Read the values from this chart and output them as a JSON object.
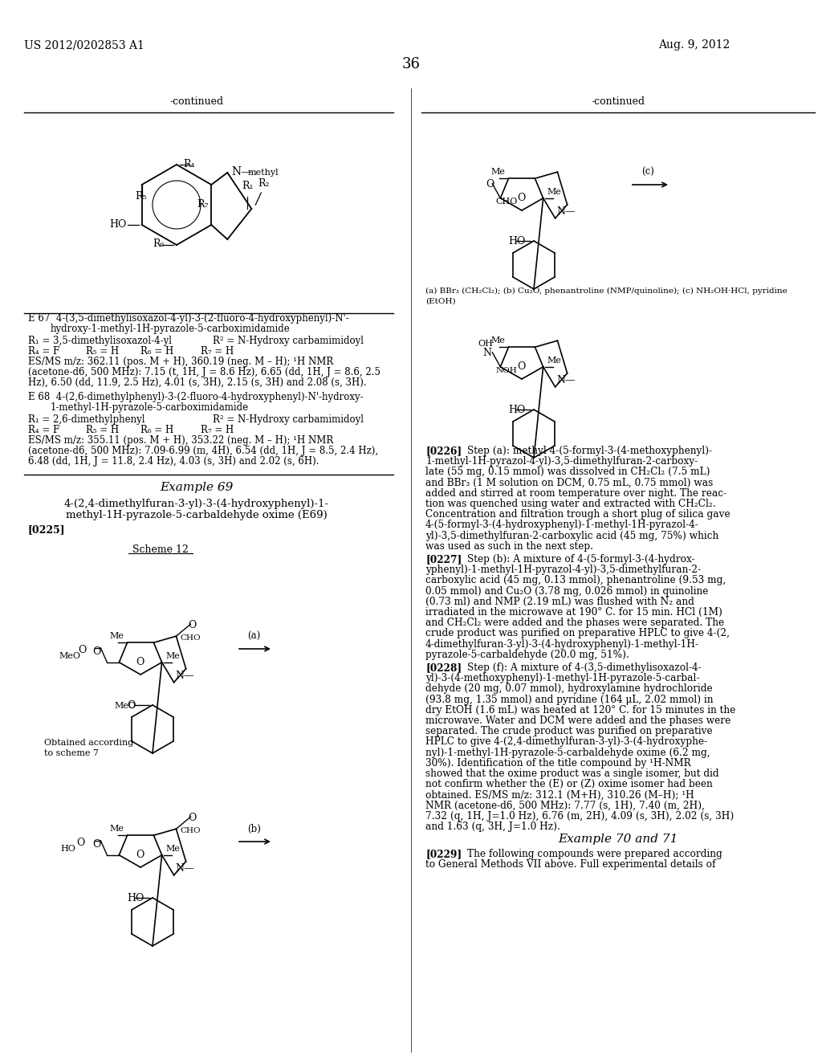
{
  "page_number": "36",
  "patent_number": "US 2012/0202853 A1",
  "patent_date": "Aug. 9, 2012",
  "background_color": "#ffffff",
  "text_color": "#000000",
  "left_panel": {
    "continued_label": "-continued",
    "table_entries": [
      {
        "id": "E 67",
        "name1": "4-(3,5-dimethylisoxazol-4-yl)-3-(2-fluoro-4-hydroxyphenyl)-N'-",
        "name2": "hydroxy-1-methyl-1H-pyrazole-5-carboximidamide",
        "r1": "R₁ = 3,5-dimethylisoxazol-4-yl",
        "r2": "R² = N-Hydroxy carbamimidoyl",
        "r4": "R₄ = F",
        "r5": "R₅ = H",
        "r6": "R₆ = H",
        "r7": "R₇ = H",
        "esms1": "ES/MS m/z: 362.11 (pos. M + H), 360.19 (neg. M – H); ¹H NMR",
        "esms2": "(acetone-d6, 500 MHz): 7.15 (t, 1H, J = 8.6 Hz), 6.65 (dd, 1H, J = 8.6, 2.5",
        "esms3": "Hz), 6.50 (dd, 11.9, 2.5 Hz), 4.01 (s, 3H), 2.15 (s, 3H) and 2.08 (s, 3H)."
      },
      {
        "id": "E 68",
        "name1": "4-(2,6-dimethylphenyl)-3-(2-fluoro-4-hydroxyphenyl)-N'-hydroxy-",
        "name2": "1-methyl-1H-pyrazole-5-carboximidamide",
        "r1": "R₁ = 2,6-dimethylphenyl",
        "r2": "R² = N-Hydroxy carbamimidoyl",
        "r4": "R₄ = F",
        "r5": "R₅ = H",
        "r6": "R₆ = H",
        "r7": "R₇ = H",
        "esms1": "ES/MS m/z: 355.11 (pos. M + H), 353.22 (neg. M – H); ¹H NMR",
        "esms2": "(acetone-d6, 500 MHz): 7.09-6.99 (m, 4H), 6.54 (dd, 1H, J = 8.5, 2.4 Hz),",
        "esms3": "6.48 (dd, 1H, J = 11.8, 2.4 Hz), 4.03 (s, 3H) and 2.02 (s, 6H)."
      }
    ],
    "example_number": "Example 69",
    "example_title1": "4-(2,4-dimethylfuran-3-yl)-3-(4-hydroxyphenyl)-1-",
    "example_title2": "methyl-1H-pyrazole-5-carbaldehyde oxime (E69)",
    "paragraph": "[0225]",
    "scheme_label": "Scheme 12",
    "obtained_label1": "Obtained according",
    "obtained_label2": "to scheme 7"
  },
  "right_panel": {
    "continued_label": "-continued",
    "reagents1": "(a) BBr₃ (CH₂Cl₂); (b) Cu₂O, phenantroline (NMP/quinoline); (c) NH₂OH·HCl, pyridine",
    "reagents2": "(EtOH)",
    "paragraph_226": "[0226]",
    "text_226_1": "Step (a): methyl 4-(5-formyl-3-(4-methoxyphenyl)-",
    "text_226_2": "1-methyl-1H-pyrazol-4-yl)-3,5-dimethylfuran-2-carboxy-",
    "text_226_3": "late (55 mg, 0.15 mmol) was dissolved in CH₂Cl₂ (7.5 mL)",
    "text_226_4": "and BBr₃ (1 M solution on DCM, 0.75 mL, 0.75 mmol) was",
    "text_226_5": "added and stirred at room temperature over night. The reac-",
    "text_226_6": "tion was quenched using water and extracted with CH₂Cl₂.",
    "text_226_7": "Concentration and filtration trough a short plug of silica gave",
    "text_226_8": "4-(5-formyl-3-(4-hydroxyphenyl)-1-methyl-1H-pyrazol-4-",
    "text_226_9": "yl)-3,5-dimethylfuran-2-carboxylic acid (45 mg, 75%) which",
    "text_226_10": "was used as such in the next step.",
    "paragraph_227": "[0227]",
    "text_227_1": "Step (b): A mixture of 4-(5-formyl-3-(4-hydrox-",
    "text_227_2": "yphenyl)-1-methyl-1H-pyrazol-4-yl)-3,5-dimethylfuran-2-",
    "text_227_3": "carboxylic acid (45 mg, 0.13 mmol), phenantroline (9.53 mg,",
    "text_227_4": "0.05 mmol) and Cu₂O (3.78 mg, 0.026 mmol) in quinoline",
    "text_227_5": "(0.73 ml) and NMP (2.19 mL) was flushed with N₂ and",
    "text_227_6": "irradiated in the microwave at 190° C. for 15 min. HCl (1M)",
    "text_227_7": "and CH₂Cl₂ were added and the phases were separated. The",
    "text_227_8": "crude product was purified on preparative HPLC to give 4-(2,",
    "text_227_9": "4-dimethylfuran-3-yl)-3-(4-hydroxyphenyl)-1-methyl-1H-",
    "text_227_10": "pyrazole-5-carbaldehyde (20.0 mg, 51%).",
    "paragraph_228": "[0228]",
    "text_228_1": "Step (f): A mixture of 4-(3,5-dimethylisoxazol-4-",
    "text_228_2": "yl)-3-(4-methoxyphenyl)-1-methyl-1H-pyrazole-5-carbal-",
    "text_228_3": "dehyde (20 mg, 0.07 mmol), hydroxylamine hydrochloride",
    "text_228_4": "(93.8 mg, 1.35 mmol) and pyridine (164 μL, 2.02 mmol) in",
    "text_228_5": "dry EtOH (1.6 mL) was heated at 120° C. for 15 minutes in the",
    "text_228_6": "microwave. Water and DCM were added and the phases were",
    "text_228_7": "separated. The crude product was purified on preparative",
    "text_228_8": "HPLC to give 4-(2,4-dimethylfuran-3-yl)-3-(4-hydroxyphe-",
    "text_228_9": "nyl)-1-methyl-1H-pyrazole-5-carbaldehyde oxime (6.2 mg,",
    "text_228_10": "30%). Identification of the title compound by ¹H-NMR",
    "text_228_11": "showed that the oxime product was a single isomer, but did",
    "text_228_12": "not confirm whether the (E) or (Z) oxime isomer had been",
    "text_228_13": "obtained. ES/MS m/z: 312.1 (M+H), 310.26 (M–H); ¹H",
    "text_228_14": "NMR (acetone-d6, 500 MHz): 7.77 (s, 1H), 7.40 (m, 2H),",
    "text_228_15": "7.32 (q, 1H, J=1.0 Hz), 6.76 (m, 2H), 4.09 (s, 3H), 2.02 (s, 3H)",
    "text_228_16": "and 1.63 (q, 3H, J=1.0 Hz).",
    "example_70_71": "Example 70 and 71",
    "paragraph_229": "[0229]",
    "text_229_1": "The following compounds were prepared according",
    "text_229_2": "to General Methods VII above. Full experimental details of"
  }
}
